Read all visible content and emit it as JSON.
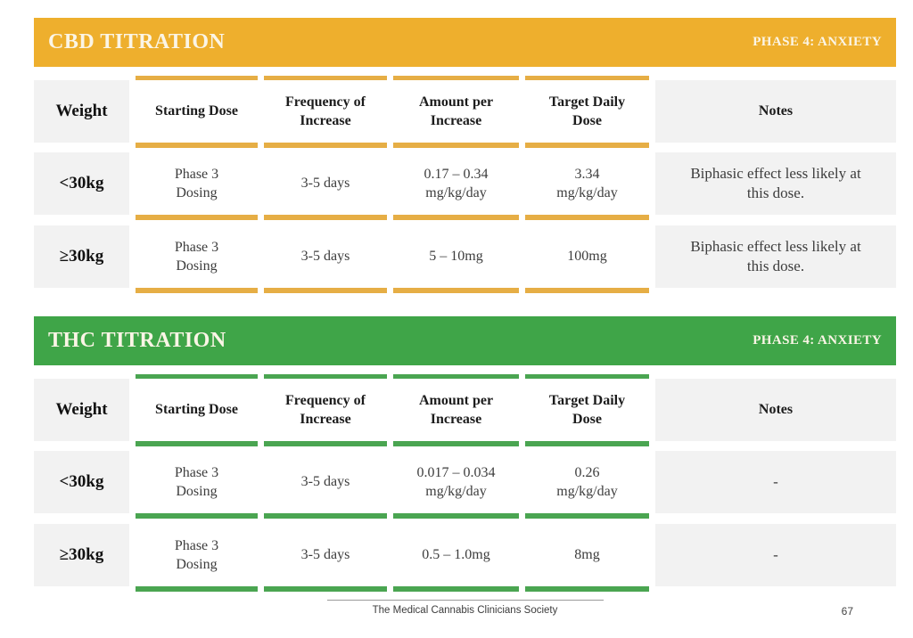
{
  "colors": {
    "cbd_accent": "#EEAF2D",
    "cbd_underline": "#E6AE45",
    "thc_accent": "#3FA548",
    "thc_underline": "#4AA551",
    "cell_gray": "#F2F2F2",
    "banner_text": "#FBF5E6"
  },
  "sections": [
    {
      "title": "CBD TITRATION",
      "phase": "PHASE 4: ANXIETY",
      "columns": [
        "Weight",
        "Starting Dose",
        "Frequency of\nIncrease",
        "Amount per\nIncrease",
        "Target Daily\nDose",
        "Notes"
      ],
      "rows": [
        [
          "<30kg",
          "Phase 3\nDosing",
          "3-5 days",
          "0.17 – 0.34\nmg/kg/day",
          "3.34\nmg/kg/day",
          "Biphasic effect less likely at\nthis dose."
        ],
        [
          "≥30kg",
          "Phase 3\nDosing",
          "3-5 days",
          "5 – 10mg",
          "100mg",
          "Biphasic effect less likely at\nthis dose."
        ]
      ]
    },
    {
      "title": "THC TITRATION",
      "phase": "PHASE 4: ANXIETY",
      "columns": [
        "Weight",
        "Starting Dose",
        "Frequency of\nIncrease",
        "Amount per\nIncrease",
        "Target Daily\nDose",
        "Notes"
      ],
      "rows": [
        [
          "<30kg",
          "Phase 3\nDosing",
          "3-5 days",
          "0.017 – 0.034\nmg/kg/day",
          "0.26\nmg/kg/day",
          "-"
        ],
        [
          "≥30kg",
          "Phase 3\nDosing",
          "3-5 days",
          "0.5 – 1.0mg",
          "8mg",
          "-"
        ]
      ]
    }
  ],
  "footer": {
    "org": "The Medical Cannabis Clinicians Society",
    "page_number": "67"
  }
}
